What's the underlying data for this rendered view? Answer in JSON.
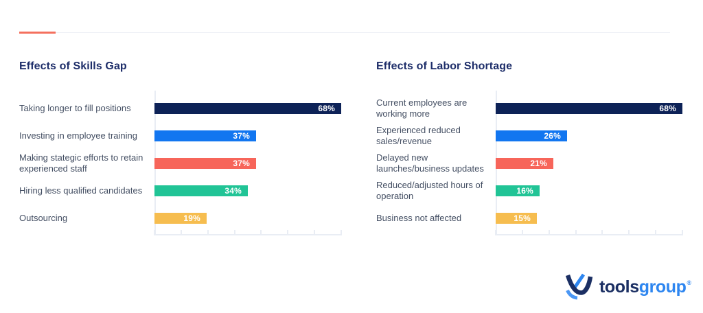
{
  "style": {
    "background": "#ffffff",
    "accent_rule_color": "#f4705e",
    "divider_color": "#edf0f6",
    "title_color": "#1d2d69",
    "label_color": "#444f63",
    "axis_color": "#e9edf4",
    "bar_value_text_color": "#ffffff"
  },
  "chart_data": [
    {
      "type": "bar",
      "orientation": "horizontal",
      "title": "Effects of Skills Gap",
      "categories": [
        "Taking longer to fill positions",
        "Investing in employee training",
        "Making stategic efforts to retain\nexperienced staff",
        "Hiring less qualified candidates",
        "Outsourcing"
      ],
      "values": [
        68,
        37,
        37,
        34,
        19
      ],
      "value_labels": [
        "68%",
        "37%",
        "37%",
        "34%",
        "19%"
      ],
      "bar_colors": [
        "#0d2257",
        "#1276f0",
        "#f7655a",
        "#21c496",
        "#f6bd4f"
      ],
      "unit": "percent",
      "xlim": [
        0,
        68
      ],
      "tick_count": 8,
      "grid": false,
      "legend": false,
      "value_label_position": "inside-end"
    },
    {
      "type": "bar",
      "orientation": "horizontal",
      "title": "Effects of Labor Shortage",
      "categories": [
        "Current employees are\nworking more",
        "Experienced reduced\nsales/revenue",
        "Delayed new\nlaunches/business updates",
        "Reduced/adjusted hours of\noperation",
        "Business not affected"
      ],
      "values": [
        68,
        26,
        21,
        16,
        15
      ],
      "value_labels": [
        "68%",
        "26%",
        "21%",
        "16%",
        "15%"
      ],
      "bar_colors": [
        "#0d2257",
        "#1276f0",
        "#f7655a",
        "#21c496",
        "#f6bd4f"
      ],
      "unit": "percent",
      "xlim": [
        0,
        68
      ],
      "tick_count": 8,
      "grid": false,
      "legend": false,
      "value_label_position": "inside-end"
    }
  ],
  "logo": {
    "first": "tools",
    "second": "group",
    "registered_mark": "®",
    "first_color": "#1b2f63",
    "second_color": "#2e86f0"
  }
}
